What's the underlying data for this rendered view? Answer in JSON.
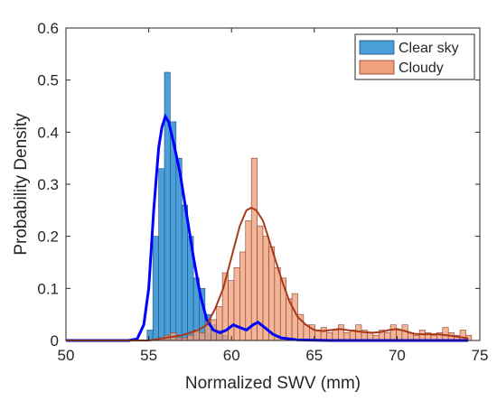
{
  "chart_data": {
    "type": "bar",
    "title": "",
    "xlabel": "Normalized SWV (mm)",
    "ylabel": "Probability Density",
    "xlim": [
      50,
      75
    ],
    "ylim": [
      0,
      0.6
    ],
    "xticks": [
      50,
      55,
      60,
      65,
      70,
      75
    ],
    "yticks": [
      0,
      0.1,
      0.2,
      0.3,
      0.4,
      0.5,
      0.6
    ],
    "xtick_labels": [
      "50",
      "55",
      "60",
      "65",
      "70",
      "75"
    ],
    "ytick_labels": [
      "0",
      "0.1",
      "0.2",
      "0.3",
      "0.4",
      "0.5",
      "0.6"
    ],
    "grid": false,
    "legend_position": "top-right",
    "bin_width": 0.35,
    "series": [
      {
        "name": "Clear sky",
        "kind": "histogram",
        "color": "#4a9fd8",
        "edge_color": "#1f4e79",
        "bins": [
          [
            54.9,
            0.02
          ],
          [
            55.25,
            0.2
          ],
          [
            55.6,
            0.33
          ],
          [
            55.95,
            0.515
          ],
          [
            56.3,
            0.42
          ],
          [
            56.65,
            0.35
          ],
          [
            57.0,
            0.26
          ],
          [
            57.35,
            0.2
          ],
          [
            57.7,
            0.12
          ],
          [
            58.05,
            0.1
          ],
          [
            58.4,
            0.05
          ],
          [
            58.75,
            0.03
          ],
          [
            59.1,
            0.02
          ],
          [
            59.45,
            0.01
          ]
        ]
      },
      {
        "name": "Cloudy",
        "kind": "histogram",
        "color": "#f0a07a",
        "edge_color": "#8b3a2a",
        "bins": [
          [
            55.6,
            0.005
          ],
          [
            55.95,
            0.01
          ],
          [
            56.3,
            0.015
          ],
          [
            56.65,
            0.005
          ],
          [
            57.0,
            0.005
          ],
          [
            57.35,
            0.01
          ],
          [
            57.7,
            0.02
          ],
          [
            58.05,
            0.015
          ],
          [
            58.4,
            0.03
          ],
          [
            58.75,
            0.04
          ],
          [
            59.1,
            0.065
          ],
          [
            59.45,
            0.13
          ],
          [
            59.8,
            0.115
          ],
          [
            60.15,
            0.14
          ],
          [
            60.5,
            0.17
          ],
          [
            60.85,
            0.23
          ],
          [
            61.2,
            0.35
          ],
          [
            61.55,
            0.22
          ],
          [
            61.9,
            0.2
          ],
          [
            62.25,
            0.18
          ],
          [
            62.6,
            0.14
          ],
          [
            62.95,
            0.12
          ],
          [
            63.3,
            0.08
          ],
          [
            63.65,
            0.09
          ],
          [
            64.0,
            0.05
          ],
          [
            64.35,
            0.03
          ],
          [
            64.7,
            0.03
          ],
          [
            65.05,
            0.02
          ],
          [
            65.4,
            0.025
          ],
          [
            65.75,
            0.015
          ],
          [
            66.1,
            0.02
          ],
          [
            66.45,
            0.03
          ],
          [
            66.8,
            0.015
          ],
          [
            67.15,
            0.02
          ],
          [
            67.5,
            0.03
          ],
          [
            67.85,
            0.02
          ],
          [
            68.2,
            0.015
          ],
          [
            68.55,
            0.01
          ],
          [
            68.9,
            0.02
          ],
          [
            69.25,
            0.015
          ],
          [
            69.6,
            0.03
          ],
          [
            69.95,
            0.02
          ],
          [
            70.3,
            0.03
          ],
          [
            70.65,
            0.015
          ],
          [
            71.0,
            0.01
          ],
          [
            71.35,
            0.02
          ],
          [
            71.7,
            0.015
          ],
          [
            72.05,
            0.01
          ],
          [
            72.4,
            0.015
          ],
          [
            72.75,
            0.025
          ],
          [
            73.1,
            0.015
          ],
          [
            73.45,
            0.01
          ],
          [
            73.8,
            0.02
          ],
          [
            74.15,
            0.01
          ]
        ]
      },
      {
        "kind": "density",
        "color": "#0000ff",
        "of": "Clear sky",
        "points": [
          [
            50,
            0
          ],
          [
            53.8,
            0
          ],
          [
            54.3,
            0.003
          ],
          [
            54.7,
            0.03
          ],
          [
            55.0,
            0.1
          ],
          [
            55.3,
            0.25
          ],
          [
            55.6,
            0.37
          ],
          [
            55.8,
            0.41
          ],
          [
            56.0,
            0.43
          ],
          [
            56.2,
            0.42
          ],
          [
            56.5,
            0.38
          ],
          [
            56.9,
            0.32
          ],
          [
            57.3,
            0.24
          ],
          [
            57.7,
            0.16
          ],
          [
            58.1,
            0.09
          ],
          [
            58.5,
            0.04
          ],
          [
            58.9,
            0.02
          ],
          [
            59.3,
            0.015
          ],
          [
            59.7,
            0.02
          ],
          [
            60.1,
            0.03
          ],
          [
            60.5,
            0.025
          ],
          [
            60.9,
            0.02
          ],
          [
            61.3,
            0.03
          ],
          [
            61.6,
            0.035
          ],
          [
            62.0,
            0.025
          ],
          [
            62.5,
            0.012
          ],
          [
            63.0,
            0.005
          ],
          [
            64.0,
            0.001
          ],
          [
            66.0,
            0
          ],
          [
            74.3,
            0
          ]
        ]
      },
      {
        "kind": "density",
        "color": "#a83a1a",
        "of": "Cloudy",
        "points": [
          [
            50,
            0
          ],
          [
            55.0,
            0
          ],
          [
            56.0,
            0.005
          ],
          [
            57.0,
            0.01
          ],
          [
            58.0,
            0.02
          ],
          [
            58.5,
            0.03
          ],
          [
            59.0,
            0.06
          ],
          [
            59.5,
            0.1
          ],
          [
            60.0,
            0.16
          ],
          [
            60.5,
            0.22
          ],
          [
            60.9,
            0.25
          ],
          [
            61.2,
            0.255
          ],
          [
            61.5,
            0.25
          ],
          [
            61.9,
            0.23
          ],
          [
            62.3,
            0.19
          ],
          [
            62.7,
            0.15
          ],
          [
            63.1,
            0.11
          ],
          [
            63.5,
            0.075
          ],
          [
            64.0,
            0.045
          ],
          [
            64.5,
            0.03
          ],
          [
            65.0,
            0.02
          ],
          [
            65.5,
            0.018
          ],
          [
            66.0,
            0.02
          ],
          [
            66.5,
            0.022
          ],
          [
            67.0,
            0.02
          ],
          [
            67.5,
            0.018
          ],
          [
            68.0,
            0.016
          ],
          [
            68.5,
            0.015
          ],
          [
            69.0,
            0.016
          ],
          [
            69.5,
            0.02
          ],
          [
            70.0,
            0.022
          ],
          [
            70.5,
            0.018
          ],
          [
            71.0,
            0.013
          ],
          [
            71.5,
            0.012
          ],
          [
            72.0,
            0.012
          ],
          [
            72.5,
            0.012
          ],
          [
            73.0,
            0.01
          ],
          [
            73.5,
            0.008
          ],
          [
            74.3,
            0.004
          ]
        ]
      }
    ]
  }
}
